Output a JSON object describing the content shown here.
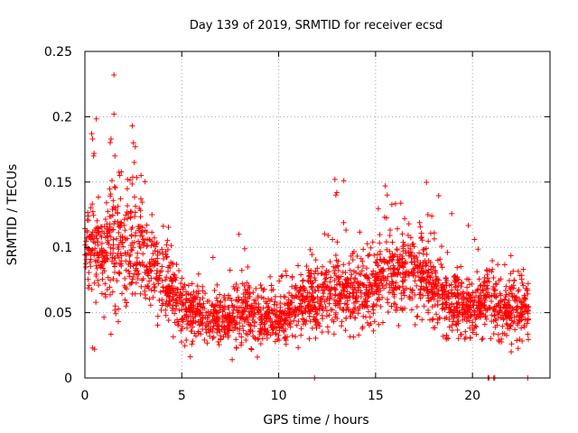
{
  "chart_data": {
    "type": "scatter",
    "title": "Day 139 of 2019, SRMTID for receiver ecsd",
    "xlabel": "GPS time / hours",
    "ylabel": "SRMTID / TECUs",
    "xlim": [
      0,
      24
    ],
    "ylim": [
      0,
      0.25
    ],
    "xticks": [
      0,
      5,
      10,
      15,
      20
    ],
    "yticks": [
      0,
      0.05,
      0.1,
      0.15,
      0.2,
      0.25
    ],
    "ytick_labels": [
      "0",
      "0.05",
      "0.1",
      "0.15",
      "0.2",
      "0.25"
    ],
    "grid": true,
    "marker": "+",
    "color": "#ff0000",
    "trend": {
      "x": [
        0,
        0.5,
        1,
        1.5,
        2,
        2.5,
        3,
        3.5,
        4,
        4.5,
        5,
        5.5,
        6,
        6.5,
        7,
        7.5,
        8,
        8.5,
        9,
        9.5,
        10,
        10.5,
        11,
        11.5,
        12,
        12.5,
        13,
        13.5,
        14,
        14.5,
        15,
        15.5,
        16,
        16.5,
        17,
        17.5,
        18,
        18.5,
        19,
        19.5,
        20,
        20.5,
        21,
        21.5,
        22,
        22.5,
        22.9
      ],
      "y": [
        0.1,
        0.105,
        0.1,
        0.105,
        0.11,
        0.1,
        0.09,
        0.085,
        0.075,
        0.07,
        0.055,
        0.05,
        0.045,
        0.045,
        0.045,
        0.045,
        0.05,
        0.05,
        0.045,
        0.045,
        0.045,
        0.05,
        0.055,
        0.06,
        0.06,
        0.065,
        0.07,
        0.065,
        0.065,
        0.065,
        0.07,
        0.08,
        0.075,
        0.08,
        0.08,
        0.08,
        0.065,
        0.06,
        0.06,
        0.055,
        0.05,
        0.055,
        0.06,
        0.055,
        0.055,
        0.055,
        0.055
      ],
      "spread": [
        0.03,
        0.04,
        0.035,
        0.045,
        0.045,
        0.04,
        0.03,
        0.025,
        0.025,
        0.022,
        0.02,
        0.018,
        0.016,
        0.016,
        0.016,
        0.016,
        0.018,
        0.018,
        0.016,
        0.016,
        0.016,
        0.018,
        0.018,
        0.02,
        0.02,
        0.022,
        0.025,
        0.022,
        0.022,
        0.022,
        0.025,
        0.025,
        0.025,
        0.025,
        0.025,
        0.025,
        0.022,
        0.02,
        0.02,
        0.02,
        0.018,
        0.02,
        0.02,
        0.02,
        0.02,
        0.02,
        0.02
      ],
      "n_points": 2600
    },
    "highlights": [
      {
        "x": 1.5,
        "y": 0.232
      },
      {
        "x": 1.5,
        "y": 0.202
      },
      {
        "x": 2.45,
        "y": 0.193
      },
      {
        "x": 0.35,
        "y": 0.187
      },
      {
        "x": 0.4,
        "y": 0.183
      },
      {
        "x": 1.35,
        "y": 0.183
      },
      {
        "x": 2.5,
        "y": 0.18
      },
      {
        "x": 2.6,
        "y": 0.177
      },
      {
        "x": 2.55,
        "y": 0.165
      },
      {
        "x": 0.45,
        "y": 0.17
      },
      {
        "x": 1.55,
        "y": 0.17
      },
      {
        "x": 2.9,
        "y": 0.155
      },
      {
        "x": 1.8,
        "y": 0.155
      },
      {
        "x": 2.2,
        "y": 0.152
      },
      {
        "x": 12.9,
        "y": 0.152
      },
      {
        "x": 12.95,
        "y": 0.14
      },
      {
        "x": 13.0,
        "y": 0.142
      },
      {
        "x": 15.5,
        "y": 0.147
      },
      {
        "x": 15.6,
        "y": 0.14
      },
      {
        "x": 0.5,
        "y": 0.022
      },
      {
        "x": 0.4,
        "y": 0.023
      },
      {
        "x": 7.6,
        "y": 0.014
      },
      {
        "x": 8.9,
        "y": 0.016
      },
      {
        "x": 22.0,
        "y": 0.02
      },
      {
        "x": 7.95,
        "y": 0.11
      },
      {
        "x": 17.9,
        "y": 0.124
      },
      {
        "x": 17.7,
        "y": 0.125
      },
      {
        "x": 20.1,
        "y": 0.106
      },
      {
        "x": 16.5,
        "y": 0.122
      }
    ],
    "zero_points": [
      {
        "x": 11.85,
        "y": 0
      },
      {
        "x": 20.8,
        "y": 0
      },
      {
        "x": 20.85,
        "y": 0
      },
      {
        "x": 21.1,
        "y": 0
      },
      {
        "x": 21.15,
        "y": 0
      },
      {
        "x": 22.85,
        "y": 0
      }
    ]
  }
}
